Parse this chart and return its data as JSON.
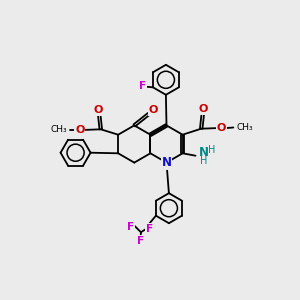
{
  "bg_color": "#ebebeb",
  "bond_color": "#000000",
  "N_color": "#1010cc",
  "O_color": "#cc0000",
  "F_color": "#cc00cc",
  "NH_color": "#008888",
  "lw": 1.3,
  "ring_r": 0.6,
  "xlim": [
    0,
    10
  ],
  "ylim": [
    0,
    10
  ]
}
